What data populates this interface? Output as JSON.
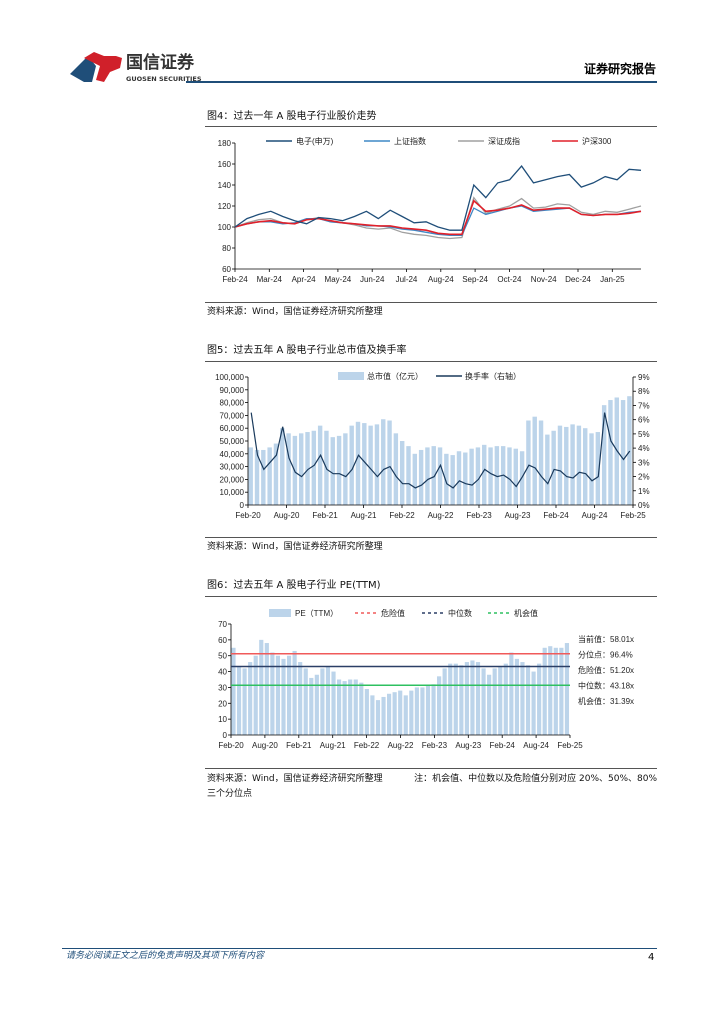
{
  "header": {
    "logo_cn": "国信证券",
    "logo_en": "GUOSEN SECURITIES",
    "report_type": "证券研究报告",
    "accent": "#1f4e79"
  },
  "fig4": {
    "title": "图4：过去一年 A 股电子行业股价走势",
    "source": "资料来源：Wind，国信证券经济研究所整理"
  },
  "fig5": {
    "title": "图5：过去五年 A 股电子行业总市值及换手率",
    "source": "资料来源：Wind，国信证券经济研究所整理"
  },
  "fig6": {
    "title": "图6：过去五年 A 股电子行业 PE(TTM)",
    "source": "资料来源：Wind，国信证券经济研究所整理",
    "note": "注：机会值、中位数以及危险值分别对应 20%、50%、80%",
    "note2": "三个分位点"
  },
  "footer": {
    "disclaimer": "请务必阅读正文之后的免责声明及其项下所有内容",
    "page": "4"
  },
  "chart_data": [
    {
      "type": "line",
      "ylim": [
        60,
        180
      ],
      "yticks": [
        "60",
        "80",
        "100",
        "120",
        "140",
        "160",
        "180"
      ],
      "xticks": [
        "Feb-24",
        "Mar-24",
        "Apr-24",
        "May-24",
        "Jun-24",
        "Jul-24",
        "Aug-24",
        "Sep-24",
        "Oct-24",
        "Nov-24",
        "Dec-24",
        "Jan-25"
      ],
      "series": [
        {
          "name": "电子(申万)",
          "color": "#1f4e79",
          "values": [
            100,
            108,
            112,
            115,
            110,
            106,
            103,
            109,
            108,
            106,
            110,
            115,
            108,
            116,
            110,
            104,
            105,
            100,
            97,
            97,
            140,
            128,
            142,
            145,
            158,
            142,
            145,
            148,
            150,
            138,
            142,
            148,
            145,
            155,
            154
          ]
        },
        {
          "name": "上证指数",
          "color": "#3f88c5",
          "values": [
            100,
            103,
            105,
            105,
            103,
            104,
            108,
            108,
            105,
            104,
            103,
            101,
            101,
            100,
            98,
            97,
            95,
            93,
            92,
            92,
            118,
            112,
            115,
            118,
            120,
            115,
            116,
            117,
            118,
            112,
            111,
            112,
            112,
            114,
            115
          ]
        },
        {
          "name": "深证成指",
          "color": "#a0a0a0",
          "values": [
            100,
            104,
            107,
            108,
            104,
            103,
            107,
            109,
            105,
            104,
            102,
            99,
            98,
            99,
            95,
            93,
            92,
            90,
            89,
            90,
            128,
            113,
            117,
            120,
            127,
            118,
            119,
            122,
            121,
            114,
            112,
            115,
            114,
            117,
            120
          ]
        },
        {
          "name": "沪深300",
          "color": "#e0202a",
          "values": [
            100,
            103,
            105,
            106,
            104,
            103,
            107,
            108,
            106,
            104,
            103,
            102,
            101,
            101,
            99,
            98,
            97,
            94,
            93,
            93,
            125,
            115,
            116,
            118,
            121,
            116,
            117,
            118,
            118,
            112,
            111,
            112,
            112,
            113,
            115
          ]
        }
      ]
    },
    {
      "type": "bar+line",
      "ylim": [
        0,
        100000
      ],
      "y2lim": [
        0,
        9
      ],
      "yticks": [
        "0",
        "10,000",
        "20,000",
        "30,000",
        "40,000",
        "50,000",
        "60,000",
        "70,000",
        "80,000",
        "90,000",
        "100,000"
      ],
      "y2ticks": [
        "0%",
        "1%",
        "2%",
        "3%",
        "4%",
        "5%",
        "6%",
        "7%",
        "8%",
        "9%"
      ],
      "xticks": [
        "Feb-20",
        "Aug-20",
        "Feb-21",
        "Aug-21",
        "Feb-22",
        "Aug-22",
        "Feb-23",
        "Aug-23",
        "Feb-24",
        "Aug-24",
        "Feb-25"
      ],
      "bar_series": {
        "name": "总市值（亿元）",
        "color": "#bcd4ea",
        "values": [
          45000,
          43000,
          43000,
          45000,
          48000,
          60000,
          56000,
          54000,
          56000,
          57000,
          58000,
          62000,
          58000,
          53000,
          54000,
          56000,
          62000,
          65000,
          64000,
          62000,
          63000,
          67000,
          66000,
          56000,
          50000,
          46000,
          40000,
          43000,
          45000,
          46000,
          45000,
          40000,
          39000,
          42000,
          41000,
          44000,
          45000,
          47000,
          45000,
          46000,
          46000,
          45000,
          44000,
          42000,
          66000,
          69000,
          66000,
          55000,
          58000,
          62000,
          61000,
          63000,
          62000,
          60000,
          56000,
          57000,
          78000,
          82000,
          84000,
          82000,
          85000
        ]
      },
      "line_series": {
        "name": "换手率（右轴）",
        "color": "#1a3a5c",
        "values": [
          6.5,
          3.5,
          2.5,
          3.0,
          3.5,
          5.5,
          3.3,
          2.3,
          2.0,
          2.5,
          2.8,
          3.5,
          2.5,
          2.2,
          2.2,
          2.0,
          2.5,
          3.5,
          3.0,
          2.5,
          2.0,
          2.5,
          2.7,
          2.0,
          1.5,
          1.5,
          1.2,
          1.4,
          1.8,
          2.0,
          2.8,
          1.5,
          1.2,
          1.7,
          1.5,
          1.4,
          1.8,
          2.5,
          2.2,
          2.0,
          2.1,
          1.8,
          1.3,
          2.0,
          2.8,
          2.6,
          2.0,
          1.5,
          2.5,
          2.4,
          2.0,
          1.9,
          2.3,
          2.2,
          1.7,
          2.0,
          6.5,
          4.5,
          3.8,
          3.2,
          3.8
        ]
      }
    },
    {
      "type": "bar",
      "ylim": [
        0,
        70
      ],
      "yticks": [
        "0",
        "10",
        "20",
        "30",
        "40",
        "50",
        "60",
        "70"
      ],
      "xticks": [
        "Feb-20",
        "Aug-20",
        "Feb-21",
        "Aug-21",
        "Feb-22",
        "Aug-22",
        "Feb-23",
        "Aug-23",
        "Feb-24",
        "Aug-24",
        "Feb-25"
      ],
      "bar_series": {
        "name": "PE（TTM）",
        "color": "#bcd4ea",
        "values": [
          55,
          43,
          42,
          46,
          50,
          60,
          58,
          52,
          50,
          48,
          50,
          53,
          46,
          42,
          36,
          38,
          42,
          43,
          40,
          35,
          34,
          35,
          35,
          33,
          29,
          25,
          22,
          24,
          26,
          27,
          28,
          25,
          28,
          30,
          30,
          31,
          32,
          37,
          42,
          45,
          45,
          44,
          46,
          47,
          46,
          42,
          38,
          42,
          43,
          45,
          52,
          48,
          46,
          44,
          40,
          45,
          55,
          56,
          55,
          55,
          58
        ]
      },
      "hlines": [
        {
          "name": "危险值",
          "value": 51.2,
          "color": "#f05a5a"
        },
        {
          "name": "中位数",
          "value": 43.18,
          "color": "#2b3f66"
        },
        {
          "name": "机会值",
          "value": 31.39,
          "color": "#2ec060"
        }
      ],
      "annotations": [
        "当前值：58.01x",
        "分位点：96.4%",
        "危险值：51.20x",
        "中位数：43.18x",
        "机会值：31.39x"
      ]
    }
  ]
}
